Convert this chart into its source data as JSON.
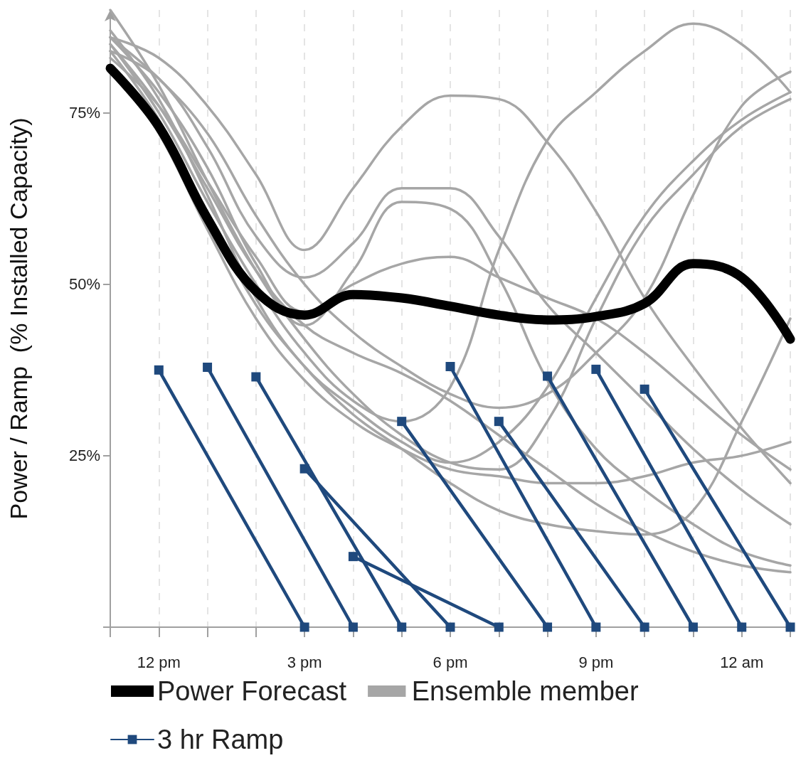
{
  "chart_data": {
    "type": "line",
    "ylabel": "Power / Ramp  (% Installed Capacity)",
    "categories": [
      null,
      "12 pm",
      null,
      null,
      "3 pm",
      null,
      null,
      "6 pm",
      null,
      null,
      "9 pm",
      null,
      null,
      "12 am",
      null
    ],
    "ylim": [
      0,
      90
    ],
    "yticks": [
      {
        "value": 0,
        "label": null
      },
      {
        "value": 25,
        "label": "25%"
      },
      {
        "value": 50,
        "label": "50%"
      },
      {
        "value": 75,
        "label": "75%"
      }
    ],
    "grid": "x",
    "legend": "bottom",
    "series": [
      {
        "name": "Power Forecast",
        "color": "#000000",
        "values": [
          81.5,
          73,
          59.6,
          49,
          45.5,
          48.5,
          48,
          46.8,
          45.5,
          44.8,
          45.3,
          47.2,
          53,
          51,
          42
        ]
      },
      {
        "name": "Ensemble member",
        "color": "#a6a6a6",
        "values": [
          85,
          75,
          62,
          50,
          40,
          33,
          30,
          35,
          55,
          71,
          78,
          84,
          88,
          85,
          78
        ]
      },
      {
        "color": "#a6a6a6",
        "values": [
          86,
          83,
          76,
          66,
          55,
          64,
          73,
          77.5,
          77,
          70.7,
          60.6,
          48,
          38,
          29,
          21
        ]
      },
      {
        "color": "#a6a6a6",
        "values": [
          84,
          80,
          70,
          57,
          51,
          56,
          64,
          64,
          57,
          47,
          40,
          33,
          26,
          20,
          15
        ]
      },
      {
        "color": "#a6a6a6",
        "values": [
          86,
          78,
          67,
          53,
          44,
          52,
          62,
          61,
          51,
          36,
          26,
          20,
          15,
          11,
          9
        ]
      },
      {
        "color": "#a6a6a6",
        "values": [
          83,
          76,
          65,
          54,
          46,
          50,
          53,
          54,
          51,
          48,
          45,
          40,
          34,
          28,
          23
        ]
      },
      {
        "color": "#a6a6a6",
        "values": [
          87,
          77,
          63,
          48,
          38,
          32,
          27,
          24,
          27,
          35,
          48,
          60,
          68,
          74,
          78
        ]
      },
      {
        "color": "#a6a6a6",
        "values": [
          90,
          79,
          65,
          52,
          42,
          34,
          28,
          24,
          23,
          30,
          45,
          58,
          66,
          73,
          77
        ]
      },
      {
        "color": "#a6a6a6",
        "values": [
          84,
          74,
          60,
          47,
          38,
          31,
          26,
          21,
          17,
          15,
          14,
          13.5,
          17,
          30,
          45
        ]
      },
      {
        "color": "#a6a6a6",
        "values": [
          86,
          80,
          72,
          60,
          50,
          43,
          38,
          34,
          32,
          34,
          40,
          48,
          63,
          76,
          81
        ]
      },
      {
        "color": "#a6a6a6",
        "values": [
          82,
          72,
          58,
          45,
          36,
          30,
          26,
          23,
          22,
          21,
          21,
          22,
          24,
          25,
          27
        ]
      },
      {
        "color": "#a6a6a6",
        "values": [
          85,
          76,
          64,
          52,
          44,
          40,
          37,
          33,
          28,
          23,
          18,
          14,
          11,
          9,
          8
        ]
      },
      {
        "name": "3 hr Ramp",
        "color": "#1f497d",
        "marker": "square",
        "values": [
          null,
          37.5,
          null,
          null,
          0,
          null,
          null,
          null,
          null,
          null,
          null,
          null,
          null,
          null,
          null
        ]
      },
      {
        "color": "#1f497d",
        "marker": "square",
        "values": [
          null,
          null,
          37.9,
          null,
          null,
          0,
          null,
          null,
          null,
          null,
          null,
          null,
          null,
          null,
          null
        ]
      },
      {
        "color": "#1f497d",
        "marker": "square",
        "values": [
          null,
          null,
          null,
          36.5,
          null,
          null,
          0,
          null,
          null,
          null,
          null,
          null,
          null,
          null,
          null
        ]
      },
      {
        "color": "#1f497d",
        "marker": "square",
        "values": [
          null,
          null,
          null,
          null,
          23.1,
          null,
          null,
          0,
          null,
          null,
          null,
          null,
          null,
          null,
          null
        ]
      },
      {
        "color": "#1f497d",
        "marker": "square",
        "values": [
          null,
          null,
          null,
          null,
          null,
          10.3,
          null,
          null,
          0,
          null,
          null,
          null,
          null,
          null,
          null
        ]
      },
      {
        "color": "#1f497d",
        "marker": "square",
        "values": [
          null,
          null,
          null,
          null,
          null,
          null,
          30,
          null,
          null,
          0,
          null,
          null,
          null,
          null,
          null
        ]
      },
      {
        "color": "#1f497d",
        "marker": "square",
        "values": [
          null,
          null,
          null,
          null,
          null,
          null,
          null,
          38,
          null,
          null,
          0,
          null,
          null,
          null,
          null
        ]
      },
      {
        "color": "#1f497d",
        "marker": "square",
        "values": [
          null,
          null,
          null,
          null,
          null,
          null,
          null,
          null,
          30,
          null,
          null,
          0,
          null,
          null,
          null
        ]
      },
      {
        "color": "#1f497d",
        "marker": "square",
        "values": [
          null,
          null,
          null,
          null,
          null,
          null,
          null,
          null,
          null,
          36.6,
          null,
          null,
          0,
          null,
          null
        ]
      },
      {
        "color": "#1f497d",
        "marker": "square",
        "values": [
          null,
          null,
          null,
          null,
          null,
          null,
          null,
          null,
          null,
          null,
          37.6,
          null,
          null,
          0,
          null
        ]
      },
      {
        "color": "#1f497d",
        "marker": "square",
        "values": [
          null,
          null,
          null,
          null,
          null,
          null,
          null,
          null,
          null,
          null,
          null,
          34.7,
          null,
          null,
          0
        ]
      }
    ]
  }
}
